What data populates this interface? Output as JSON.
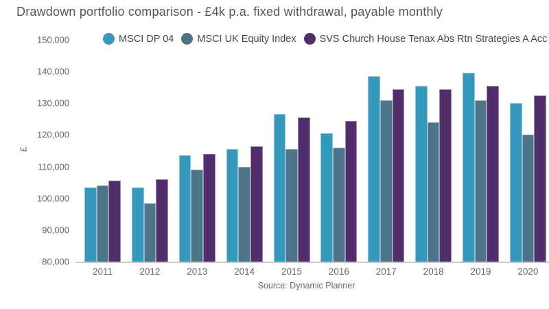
{
  "chart_data": {
    "type": "bar",
    "title": "Drawdown portfolio comparison - £4k p.a. fixed withdrawal, payable monthly",
    "source": "Source: Dynamic Planner",
    "ylabel": "£",
    "xlabel": "",
    "ylim": [
      80000,
      150000
    ],
    "ytick_step": 10000,
    "grid": false,
    "legend_position": "top",
    "background_color": "#ffffff",
    "axis_text_color": "#666666",
    "baseline_color": "#cccccc",
    "categories": [
      "2011",
      "2012",
      "2013",
      "2014",
      "2015",
      "2016",
      "2017",
      "2018",
      "2019",
      "2020"
    ],
    "series": [
      {
        "name": "MSCI DP 04",
        "color": "#3499BA",
        "values": [
          103500,
          103500,
          113500,
          115500,
          126500,
          120500,
          138500,
          135500,
          139500,
          130000
        ]
      },
      {
        "name": "MSCI UK Equity Index",
        "color": "#4D7489",
        "values": [
          104000,
          98500,
          109000,
          110000,
          115500,
          116000,
          131000,
          124000,
          131000,
          120000
        ]
      },
      {
        "name": "SVS Church House Tenax Abs Rtn Strategies A Acc",
        "color": "#522D6B",
        "values": [
          105500,
          106000,
          114000,
          116500,
          125500,
          124500,
          134500,
          134500,
          135500,
          132500
        ]
      }
    ]
  }
}
